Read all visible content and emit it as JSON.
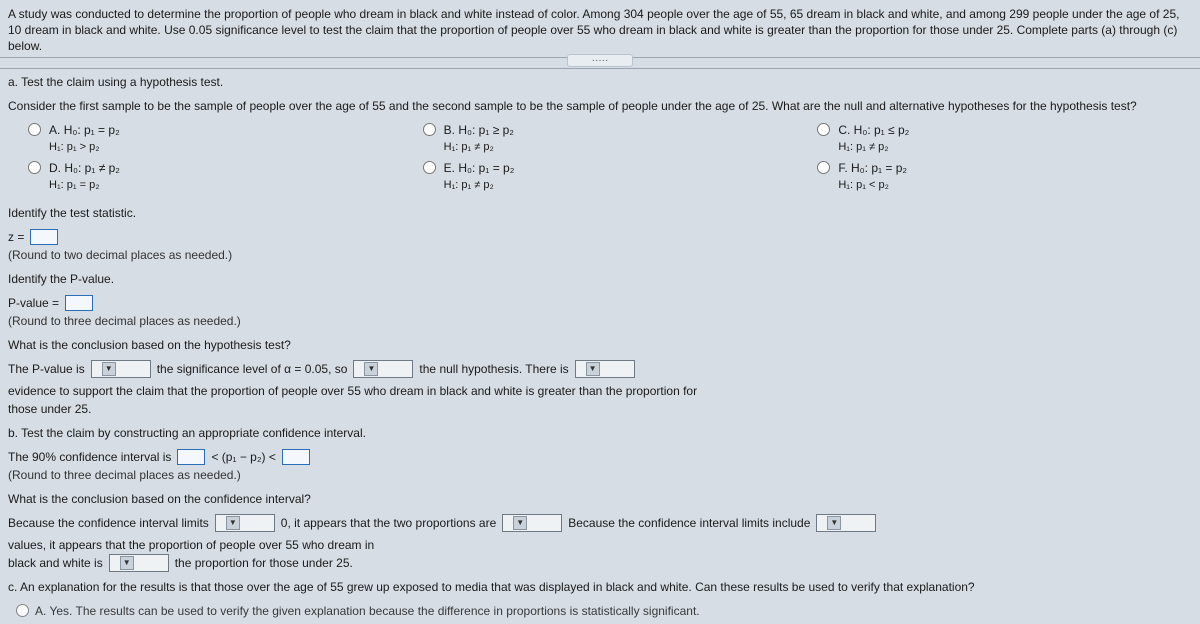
{
  "intro": "A study was conducted to determine the proportion of people who dream in black and white instead of color. Among 304 people over the age of 55, 65 dream in black and white, and among 299 people under the age of 25, 10 dream in black and white. Use 0.05 significance level to test the claim that the proportion of people over 55 who dream in black and white is greater than the proportion for those under 25. Complete parts (a) through (c) below.",
  "partA": {
    "title": "a. Test the claim using a hypothesis test.",
    "prompt": "Consider the first sample to be the sample of people over the age of 55 and the second sample to be the sample of people under the age of 25. What are the null and alternative hypotheses for the hypothesis test?"
  },
  "options": {
    "A": {
      "label": "A.",
      "h0": "H₀: p₁ = p₂",
      "h1": "H₁: p₁ > p₂"
    },
    "B": {
      "label": "B.",
      "h0": "H₀: p₁ ≥ p₂",
      "h1": "H₁: p₁ ≠ p₂"
    },
    "C": {
      "label": "C.",
      "h0": "H₀: p₁ ≤ p₂",
      "h1": "H₁: p₁ ≠ p₂"
    },
    "D": {
      "label": "D.",
      "h0": "H₀: p₁ ≠ p₂",
      "h1": "H₁: p₁ = p₂"
    },
    "E": {
      "label": "E.",
      "h0": "H₀: p₁ = p₂",
      "h1": "H₁: p₁ ≠ p₂"
    },
    "F": {
      "label": "F.",
      "h0": "H₀: p₁ = p₂",
      "h1": "H₁: p₁ < p₂"
    }
  },
  "stat": {
    "identify": "Identify the test statistic.",
    "zLabel": "z =",
    "round": "(Round to two decimal places as needed.)"
  },
  "pval": {
    "identify": "Identify the P-value.",
    "label": "P-value =",
    "round": "(Round to three decimal places as needed.)"
  },
  "concl1": {
    "q": "What is the conclusion based on the hypothesis test?",
    "t1": "The P-value is",
    "t2": "the significance level of α = 0.05, so",
    "t3": "the null hypothesis. There is",
    "t4": "evidence to support the claim that the proportion of people over 55 who dream in black and white is greater than the proportion for",
    "t5": "those under 25."
  },
  "partB": {
    "title": "b. Test the claim by constructing an appropriate confidence interval.",
    "ciPre": "The 90% confidence interval is",
    "ciMid": "< (p₁ − p₂) <",
    "round": "(Round to three decimal places as needed.)",
    "q": "What is the conclusion based on the confidence interval?",
    "t1": "Because the confidence interval limits",
    "t2": "0, it appears that the two proportions are",
    "t3": "Because the confidence interval limits include",
    "t4": "values, it appears that the proportion of people over 55 who dream in",
    "t5": "black and white is",
    "t6": "the proportion for those under 25."
  },
  "partC": {
    "q": "c. An explanation for the results is that those over the age of 55 grew up exposed to media that was displayed in black and white. Can these results be used to verify that explanation?",
    "optA": "A.  Yes. The results can be used to verify the given explanation because the difference in proportions is statistically significant."
  }
}
